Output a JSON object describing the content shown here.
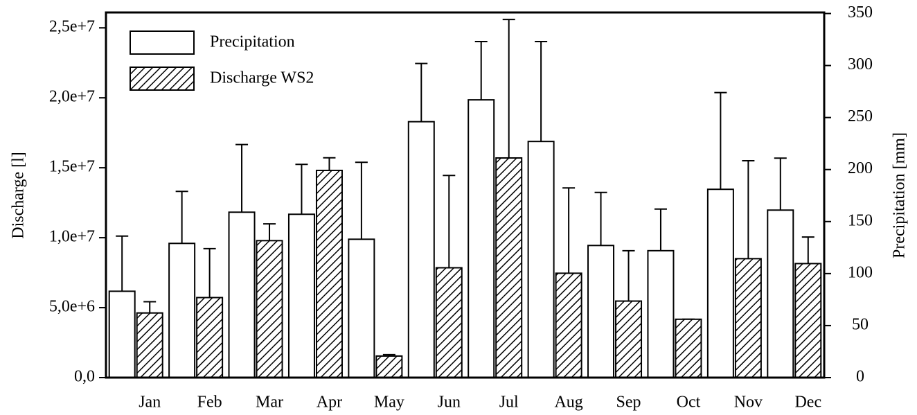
{
  "chart_data": {
    "type": "bar",
    "categories": [
      "Jan",
      "Feb",
      "Mar",
      "Apr",
      "May",
      "Jun",
      "Jul",
      "Aug",
      "Sep",
      "Oct",
      "Nov",
      "Dec"
    ],
    "ylabel": "Discharge [l]",
    "y2label": "Precipitation [mm]",
    "ylim": [
      0,
      26100000
    ],
    "yticks": [
      {
        "value": 0,
        "label": "0,0"
      },
      {
        "value": 5000000,
        "label": "5,0e+6"
      },
      {
        "value": 10000000,
        "label": "1,0e+7"
      },
      {
        "value": 15000000,
        "label": "1,5e+7"
      },
      {
        "value": 20000000,
        "label": "2,0e+7"
      },
      {
        "value": 25000000,
        "label": "2,5e+7"
      }
    ],
    "y2lim": [
      0,
      351
    ],
    "y2ticks": [
      0,
      50,
      100,
      150,
      200,
      250,
      300,
      350
    ],
    "legend": "upper left",
    "series": [
      {
        "name": "Precipitation",
        "axis": "y2",
        "color": "#ffffff",
        "hatch": false,
        "values": [
          83,
          129,
          159,
          157,
          133,
          246,
          267,
          227,
          127,
          122,
          181,
          161
        ],
        "errors": [
          53,
          50,
          65,
          48,
          74,
          56,
          56,
          96,
          51,
          40,
          93,
          50
        ]
      },
      {
        "name": "Discharge WS2",
        "axis": "y",
        "color": "#ffffff",
        "hatch": true,
        "values": [
          4620000,
          5720000,
          9790000,
          14810000,
          1540000,
          7850000,
          15700000,
          7460000,
          5470000,
          4170000,
          8500000,
          8150000
        ],
        "errors": [
          800000,
          3500000,
          1200000,
          900000,
          100000,
          6600000,
          9900000,
          6100000,
          3600000,
          0,
          7000000,
          1900000
        ]
      }
    ]
  }
}
